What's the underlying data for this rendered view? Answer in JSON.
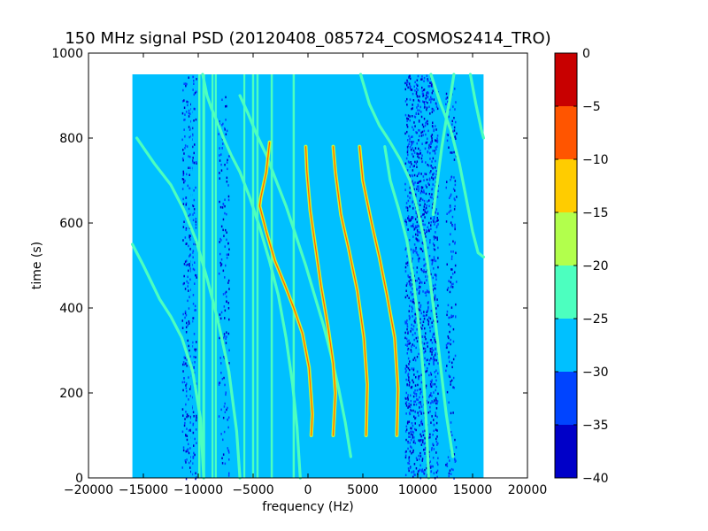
{
  "chart_data": {
    "type": "heatmap",
    "title": "150 MHz signal PSD (20120408_085724_COSMOS2414_TRO)",
    "xlabel": "frequency (Hz)",
    "ylabel": "time (s)",
    "xlim": [
      -20000,
      20000
    ],
    "ylim": [
      0,
      1000
    ],
    "x_ticks": [
      -20000,
      -15000,
      -10000,
      -5000,
      0,
      5000,
      10000,
      15000,
      20000
    ],
    "x_tick_labels": [
      "−20000",
      "−15000",
      "−10000",
      "−5000",
      "0",
      "5000",
      "10000",
      "15000",
      "20000"
    ],
    "y_ticks": [
      0,
      200,
      400,
      600,
      800,
      1000
    ],
    "y_tick_labels": [
      "0",
      "200",
      "400",
      "600",
      "800",
      "1000"
    ],
    "data_extent": {
      "x": [
        -16000,
        16000
      ],
      "y": [
        0,
        950
      ]
    },
    "background_level": -28,
    "colorbar": {
      "levels": [
        -40,
        -35,
        -30,
        -25,
        -20,
        -15,
        -10,
        -5,
        0
      ],
      "tick_labels": [
        "−40",
        "−35",
        "−30",
        "−25",
        "−20",
        "−15",
        "−10",
        "−5",
        "0"
      ],
      "colors": [
        "#0000c8",
        "#0044ff",
        "#00c0ff",
        "#4cffbf",
        "#b2ff4c",
        "#ffcc00",
        "#ff5500",
        "#c80000"
      ]
    },
    "vertical_lines": [
      {
        "x": -10600,
        "level": -27,
        "width": 120
      },
      {
        "x": -9900,
        "level": -22,
        "width": 200
      },
      {
        "x": -9500,
        "level": -22,
        "width": 250
      },
      {
        "x": -8700,
        "level": -22,
        "width": 180
      },
      {
        "x": -8400,
        "level": -22,
        "width": 180
      },
      {
        "x": -5800,
        "level": -22,
        "width": 180
      },
      {
        "x": -5000,
        "level": -22,
        "width": 200
      },
      {
        "x": -4600,
        "level": -22,
        "width": 200
      },
      {
        "x": -3300,
        "level": -22,
        "width": 200
      },
      {
        "x": -1300,
        "level": -22,
        "width": 200
      }
    ],
    "curves": [
      {
        "level": -22,
        "points": [
          [
            -16000,
            550
          ],
          [
            -15000,
            500
          ],
          [
            -13500,
            420
          ],
          [
            -12500,
            380
          ],
          [
            -11500,
            330
          ],
          [
            -10500,
            250
          ],
          [
            -9800,
            140
          ],
          [
            -9500,
            0
          ]
        ]
      },
      {
        "level": -22,
        "points": [
          [
            -15600,
            800
          ],
          [
            -14000,
            740
          ],
          [
            -12500,
            690
          ],
          [
            -11300,
            630
          ],
          [
            -10200,
            560
          ],
          [
            -9200,
            470
          ],
          [
            -8200,
            370
          ],
          [
            -7200,
            250
          ],
          [
            -6500,
            110
          ],
          [
            -6200,
            0
          ]
        ]
      },
      {
        "level": -22,
        "points": [
          [
            -9600,
            950
          ],
          [
            -9200,
            900
          ],
          [
            -8800,
            870
          ],
          [
            -8300,
            840
          ],
          [
            -7700,
            800
          ],
          [
            -7000,
            760
          ],
          [
            -6200,
            720
          ],
          [
            -5300,
            660
          ],
          [
            -4400,
            590
          ],
          [
            -3500,
            510
          ],
          [
            -2700,
            430
          ],
          [
            -2000,
            330
          ],
          [
            -1400,
            220
          ],
          [
            -1000,
            120
          ],
          [
            -700,
            0
          ]
        ]
      },
      {
        "level": -22,
        "points": [
          [
            -6200,
            900
          ],
          [
            -5500,
            860
          ],
          [
            -4700,
            810
          ],
          [
            -3800,
            760
          ],
          [
            -2900,
            700
          ],
          [
            -2000,
            640
          ],
          [
            -1100,
            570
          ],
          [
            -200,
            500
          ],
          [
            600,
            430
          ],
          [
            1400,
            360
          ],
          [
            2100,
            290
          ],
          [
            2800,
            210
          ],
          [
            3400,
            130
          ],
          [
            3900,
            50
          ]
        ]
      },
      {
        "level": -12,
        "points": [
          [
            -3500,
            790
          ],
          [
            -3800,
            720
          ],
          [
            -4300,
            660
          ],
          [
            -4400,
            640
          ],
          [
            -3800,
            580
          ],
          [
            -3000,
            510
          ],
          [
            -2200,
            460
          ],
          [
            -1300,
            400
          ],
          [
            -500,
            340
          ],
          [
            100,
            260
          ],
          [
            400,
            150
          ],
          [
            300,
            100
          ]
        ]
      },
      {
        "level": -12,
        "points": [
          [
            -200,
            780
          ],
          [
            -100,
            720
          ],
          [
            200,
            630
          ],
          [
            700,
            540
          ],
          [
            1200,
            450
          ],
          [
            1800,
            360
          ],
          [
            2300,
            270
          ],
          [
            2500,
            200
          ],
          [
            2300,
            100
          ]
        ]
      },
      {
        "level": -12,
        "points": [
          [
            2300,
            780
          ],
          [
            2500,
            720
          ],
          [
            3000,
            620
          ],
          [
            3700,
            540
          ],
          [
            4500,
            440
          ],
          [
            5100,
            330
          ],
          [
            5400,
            220
          ],
          [
            5300,
            100
          ]
        ]
      },
      {
        "level": -12,
        "points": [
          [
            4700,
            780
          ],
          [
            5000,
            700
          ],
          [
            5800,
            600
          ],
          [
            6500,
            520
          ],
          [
            7200,
            430
          ],
          [
            7900,
            330
          ],
          [
            8200,
            210
          ],
          [
            8100,
            100
          ]
        ]
      },
      {
        "level": -22,
        "points": [
          [
            7000,
            780
          ],
          [
            7500,
            700
          ],
          [
            8300,
            630
          ],
          [
            9000,
            560
          ],
          [
            9600,
            470
          ],
          [
            10100,
            360
          ],
          [
            10500,
            250
          ],
          [
            10800,
            120
          ],
          [
            11000,
            0
          ]
        ]
      },
      {
        "level": -22,
        "points": [
          [
            4800,
            950
          ],
          [
            5600,
            880
          ],
          [
            6500,
            830
          ],
          [
            7500,
            790
          ],
          [
            8400,
            750
          ],
          [
            9300,
            700
          ],
          [
            10000,
            630
          ],
          [
            10600,
            560
          ],
          [
            11100,
            470
          ],
          [
            11600,
            370
          ],
          [
            12100,
            260
          ],
          [
            12600,
            150
          ],
          [
            13200,
            50
          ]
        ]
      },
      {
        "level": -22,
        "points": [
          [
            11200,
            950
          ],
          [
            12100,
            880
          ],
          [
            13000,
            820
          ],
          [
            13800,
            740
          ],
          [
            14400,
            660
          ],
          [
            15000,
            580
          ],
          [
            15500,
            530
          ],
          [
            16000,
            520
          ]
        ]
      },
      {
        "level": -22,
        "points": [
          [
            14800,
            950
          ],
          [
            15300,
            880
          ],
          [
            15800,
            820
          ],
          [
            16000,
            800
          ]
        ]
      },
      {
        "level": -22,
        "points": [
          [
            13300,
            950
          ],
          [
            13000,
            900
          ],
          [
            12700,
            860
          ],
          [
            12200,
            780
          ],
          [
            11800,
            700
          ],
          [
            11400,
            620
          ]
        ]
      }
    ],
    "noise_bands": [
      {
        "x": [
          -11500,
          -10200
        ],
        "density": 0.35
      },
      {
        "x": [
          -8200,
          -7200
        ],
        "density": 0.2
      },
      {
        "x": [
          8800,
          11800
        ],
        "density": 0.55
      },
      {
        "x": [
          12500,
          13500
        ],
        "density": 0.25
      }
    ]
  }
}
